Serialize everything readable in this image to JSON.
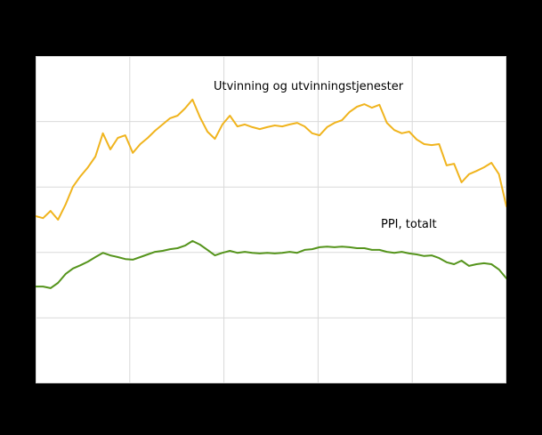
{
  "page": {
    "background": "#000000",
    "plot_background": "#ffffff"
  },
  "chart_data": {
    "type": "line",
    "title": "",
    "note": "No axis tick labels or legend are visible; plot margins are black. Values estimated from gridlines as percent of plot height (0 = bottom edge, 100 = top edge).",
    "unit": "percent-of-plot-height",
    "ylim": [
      0,
      100
    ],
    "grid": {
      "columns": 5,
      "rows": 5,
      "color": "#d9d9d9",
      "border_color": "#d9d9d9",
      "visible": true
    },
    "legend": {
      "visible": false
    },
    "annotations": [
      {
        "text": "Utvinning og utvinningstjenester",
        "series": "yellow-line"
      },
      {
        "text": "PPI, totalt",
        "series": "green-line"
      }
    ],
    "series": [
      {
        "name": "Utvinning og utvinningstjenester",
        "id": "yellow-line",
        "color": "#f0b41e",
        "stroke_width": 2,
        "values": [
          51.1,
          50.5,
          52.7,
          50.0,
          54.6,
          60.1,
          63.3,
          66.0,
          69.3,
          76.4,
          71.5,
          75.0,
          75.8,
          70.4,
          73.1,
          75.0,
          77.2,
          79.1,
          81.0,
          81.8,
          84.0,
          86.7,
          81.3,
          76.9,
          74.7,
          79.1,
          81.8,
          78.5,
          79.1,
          78.3,
          77.7,
          78.3,
          78.8,
          78.5,
          79.1,
          79.6,
          78.5,
          76.4,
          75.8,
          78.3,
          79.6,
          80.4,
          82.9,
          84.5,
          85.3,
          84.2,
          85.1,
          79.6,
          77.4,
          76.4,
          76.9,
          74.5,
          73.1,
          72.8,
          73.1,
          66.6,
          67.1,
          61.4,
          63.9,
          64.9,
          66.0,
          67.4,
          63.9,
          54.1
        ]
      },
      {
        "name": "PPI, totalt",
        "id": "green-line",
        "color": "#55941c",
        "stroke_width": 2,
        "values": [
          29.6,
          29.6,
          29.1,
          30.7,
          33.4,
          35.1,
          36.1,
          37.2,
          38.6,
          39.9,
          39.1,
          38.6,
          38.0,
          37.8,
          38.6,
          39.4,
          40.2,
          40.5,
          41.0,
          41.3,
          42.1,
          43.5,
          42.4,
          40.8,
          39.1,
          39.9,
          40.5,
          39.9,
          40.2,
          39.9,
          39.7,
          39.9,
          39.7,
          39.9,
          40.2,
          39.9,
          40.8,
          41.0,
          41.6,
          41.8,
          41.6,
          41.8,
          41.6,
          41.3,
          41.3,
          40.8,
          40.8,
          40.2,
          39.9,
          40.2,
          39.7,
          39.4,
          38.9,
          39.1,
          38.3,
          37.0,
          36.4,
          37.5,
          35.9,
          36.4,
          36.7,
          36.4,
          34.8,
          32.1
        ]
      }
    ]
  }
}
